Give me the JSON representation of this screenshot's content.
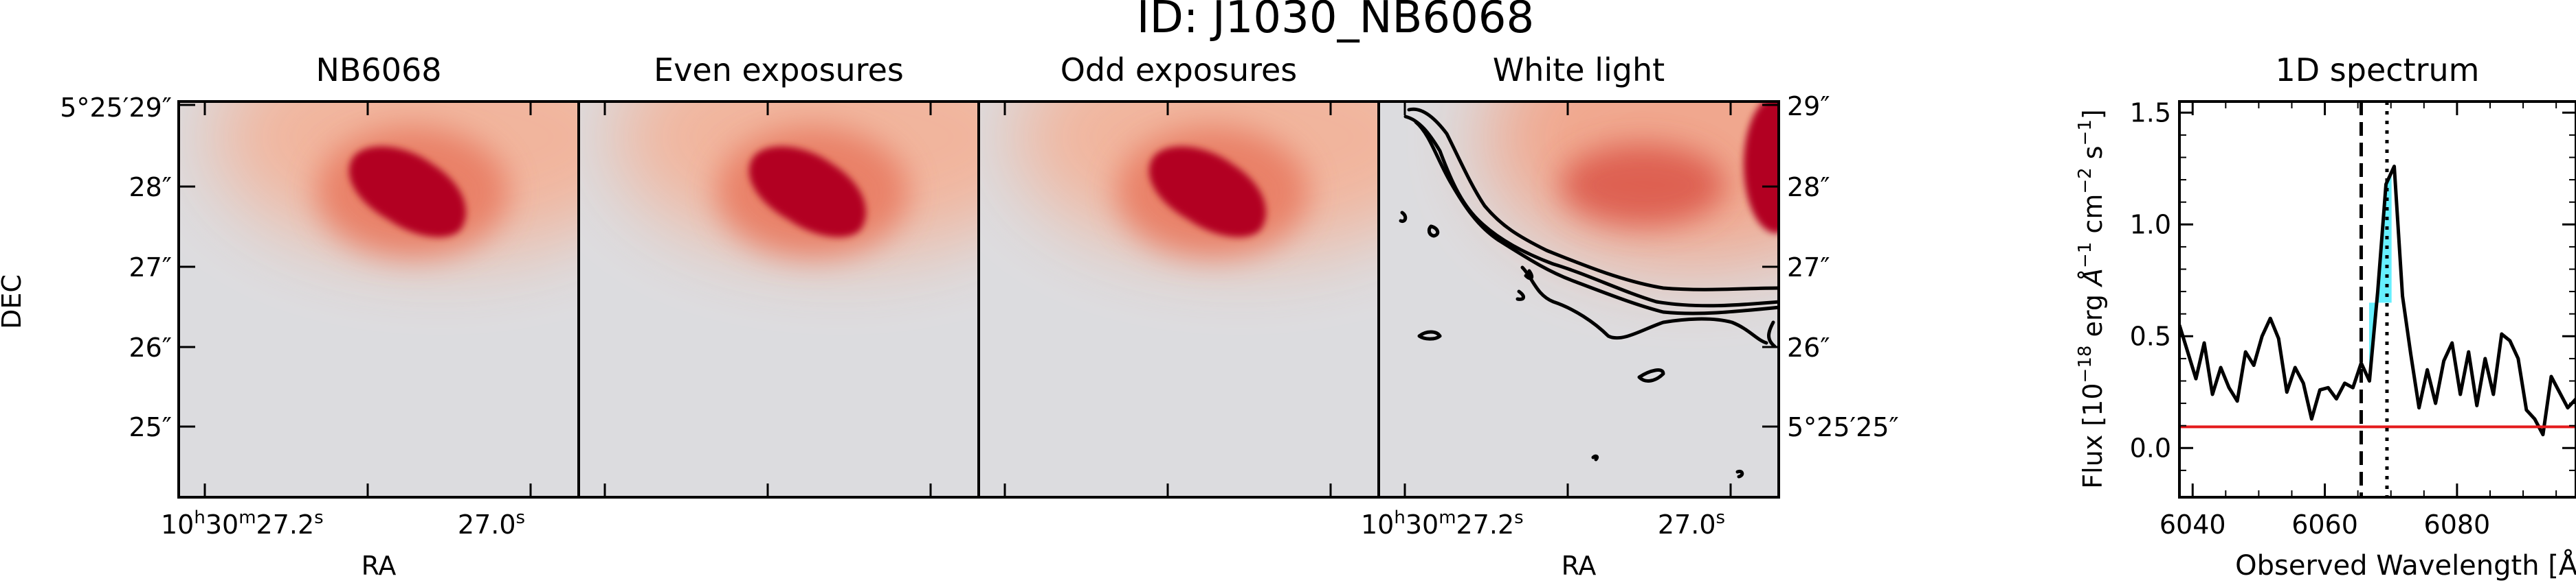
{
  "figure": {
    "suptitle": "ID: J1030_NB6068"
  },
  "panels": [
    {
      "title": "NB6068",
      "kind": "image",
      "blob": "#b20023"
    },
    {
      "title": "Even exposures",
      "kind": "image",
      "blob": "#b20023"
    },
    {
      "title": "Odd exposures",
      "kind": "image",
      "blob": "#b20023"
    },
    {
      "title": "White light",
      "kind": "image-contours",
      "blob": "#b20023"
    }
  ],
  "image_axes": {
    "xlabel": "RA",
    "ylabel": "DEC",
    "ra_tick_labels": [
      {
        "h": "10",
        "hs": "h",
        "m": "30",
        "ms": "m",
        "s": "27.2",
        "ss": "s"
      },
      {
        "s": "27.0",
        "ss": "s"
      }
    ],
    "dec_tick_labels_left": [
      "5°25′29″",
      "28″",
      "27″",
      "26″",
      "25″"
    ],
    "dec_tick_labels_right": [
      "29″",
      "28″",
      "27″",
      "26″",
      "5°25′25″"
    ]
  },
  "chart_data": {
    "type": "line",
    "title": "1D spectrum",
    "xlabel": "Observed Wavelength [Å]",
    "ylabel_parts": {
      "prefix": "Flux [10",
      "exp1": "−18",
      "mid1": " erg ",
      "ang": "Å",
      "exp2": "−1",
      "mid2": " cm",
      "exp3": "−2",
      "mid3": " s",
      "exp4": "−1",
      "suffix": "]"
    },
    "xlim": [
      6038,
      6098
    ],
    "ylim": [
      -0.22,
      1.55
    ],
    "xticks": [
      6040,
      6060,
      6080
    ],
    "yticks": [
      0.0,
      0.5,
      1.0,
      1.5
    ],
    "ytick_labels": [
      "0.0",
      "0.5",
      "1.0",
      "1.5"
    ],
    "series": [
      {
        "color": "#000000",
        "x": [
          6038,
          6039.25,
          6040.5,
          6041.75,
          6043,
          6044.25,
          6045.5,
          6046.75,
          6048,
          6049.25,
          6050.5,
          6051.75,
          6053,
          6054.25,
          6055.5,
          6056.75,
          6058,
          6059.25,
          6060.5,
          6061.75,
          6063,
          6064.25,
          6065.5,
          6066.75,
          6068,
          6069.25,
          6070.5,
          6071.75,
          6073,
          6074.25,
          6075.5,
          6076.75,
          6078,
          6079.25,
          6080.5,
          6081.75,
          6083,
          6084.25,
          6085.5,
          6086.75,
          6088,
          6089.25,
          6090.5,
          6091.75,
          6093,
          6094.25,
          6095.5,
          6096.75,
          6098
        ],
        "y": [
          0.55,
          0.43,
          0.31,
          0.47,
          0.24,
          0.36,
          0.27,
          0.21,
          0.43,
          0.37,
          0.5,
          0.58,
          0.49,
          0.25,
          0.36,
          0.29,
          0.13,
          0.26,
          0.27,
          0.22,
          0.29,
          0.27,
          0.38,
          0.3,
          0.7,
          1.18,
          1.26,
          0.68,
          0.42,
          0.18,
          0.35,
          0.2,
          0.39,
          0.47,
          0.24,
          0.43,
          0.19,
          0.4,
          0.24,
          0.51,
          0.48,
          0.4,
          0.17,
          0.13,
          0.06,
          0.32,
          0.25,
          0.18,
          0.22
        ]
      },
      {
        "color": "#e41a1c",
        "x": [
          6038,
          6098
        ],
        "y": [
          0.095,
          0.095
        ]
      }
    ],
    "vlines": [
      {
        "x": 6065.5,
        "style": "dashed"
      },
      {
        "x": 6069.4,
        "style": "dotted"
      }
    ],
    "shaded_region": {
      "x": [
        6066.7,
        6070.1
      ],
      "color": "#00e5ff"
    }
  }
}
